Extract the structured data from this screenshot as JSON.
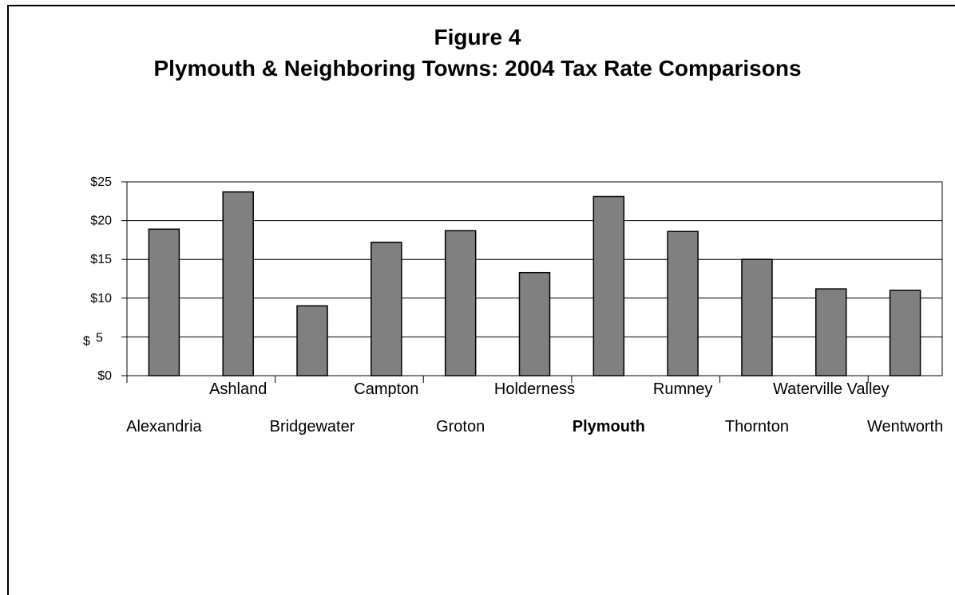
{
  "figure": {
    "title": "Figure 4",
    "subtitle": "Plymouth & Neighboring Towns: 2004 Tax Rate Comparisons"
  },
  "chart_data": {
    "type": "bar",
    "title": "Figure 4",
    "subtitle": "Plymouth & Neighboring Towns: 2004 Tax Rate Comparisons",
    "xlabel": "",
    "ylabel": "$",
    "categories": [
      "Alexandria",
      "Ashland",
      "Bridgewater",
      "Campton",
      "Groton",
      "Holderness",
      "Plymouth",
      "Rumney",
      "Thornton",
      "Waterville Valley",
      "Wentworth"
    ],
    "values": [
      18.9,
      23.7,
      9.0,
      17.2,
      18.7,
      13.3,
      23.1,
      18.6,
      15.0,
      11.2,
      11.0
    ],
    "ylim": [
      0,
      25
    ],
    "yticks": [
      0,
      5,
      10,
      15,
      20,
      25
    ],
    "ytick_labels": [
      "$0",
      "5",
      "$10",
      "$15",
      "$20",
      "$25"
    ],
    "ylabel_glyph": "$",
    "bold_category": "Plymouth",
    "bar_color": "#808080",
    "grid": true,
    "legend": "none"
  }
}
